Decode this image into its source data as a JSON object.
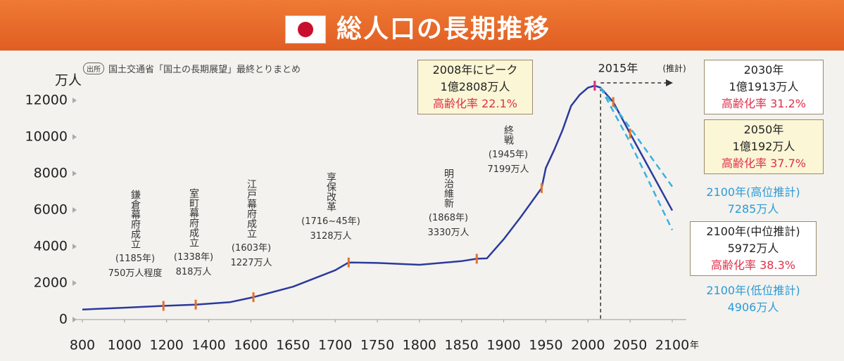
{
  "chart_data": {
    "type": "line",
    "title": "総人口の長期推移",
    "source_tag": "出所",
    "source": "国土交通省「国土の長期展望」最終とりまとめ",
    "y_unit": "万人",
    "x_unit": "年",
    "ylim": [
      0,
      13000
    ],
    "yticks": [
      0,
      2000,
      4000,
      6000,
      8000,
      10000,
      12000
    ],
    "xticks": [
      800,
      1000,
      1200,
      1400,
      1600,
      1650,
      1700,
      1750,
      1800,
      1850,
      1900,
      1950,
      2000,
      2050,
      2100
    ],
    "projection_line": {
      "value": 2015,
      "label": "2015年",
      "note": "(推計)"
    },
    "series": [
      {
        "color": "#2b3a9c",
        "style": "solid",
        "x": [
          800,
          1000,
          1185,
          1338,
          1500,
          1603,
          1650,
          1700,
          1716,
          1750,
          1800,
          1850,
          1868,
          1880,
          1900,
          1920,
          1945,
          1950,
          1960,
          1970,
          1980,
          1990,
          2000,
          2008,
          2015,
          2030,
          2050,
          2100
        ],
        "values": [
          550,
          650,
          750,
          818,
          950,
          1227,
          1800,
          2700,
          3128,
          3100,
          3000,
          3200,
          3330,
          3350,
          4400,
          5600,
          7199,
          8300,
          9300,
          10400,
          11700,
          12300,
          12700,
          12808,
          12700,
          11913,
          10192,
          5972
        ]
      },
      {
        "color": "#3ab0e0",
        "style": "dashed",
        "x": [
          2015,
          2050,
          2100
        ],
        "values": [
          12700,
          10500,
          7285
        ]
      },
      {
        "color": "#3ab0e0",
        "style": "dashed",
        "x": [
          2015,
          2050,
          2100
        ],
        "values": [
          12700,
          9700,
          4906
        ]
      },
      {
        "color": "#e8702a",
        "style": "marker",
        "x": [
          1185,
          1338,
          1603,
          1716,
          1868,
          1945,
          2030,
          2050
        ],
        "values": [
          750,
          818,
          1227,
          3128,
          3330,
          7199,
          11913,
          10192
        ]
      },
      {
        "color": "#e0307a",
        "style": "marker",
        "x": [
          2008
        ],
        "values": [
          12808
        ]
      }
    ],
    "events": [
      {
        "title": "鎌倉幕府成立",
        "date": "(1185年)",
        "value": "750万人程度"
      },
      {
        "title": "室町幕府成立",
        "date": "(1338年)",
        "value": "818万人"
      },
      {
        "title": "江戸幕府成立",
        "date": "(1603年)",
        "value": "1227万人"
      },
      {
        "title": "享保改革",
        "date": "(1716~45年)",
        "value": "3128万人"
      },
      {
        "title": "明治維新",
        "date": "(1868年)",
        "value": "3330万人"
      },
      {
        "title": "終戦",
        "date": "(1945年)",
        "value": "7199万人"
      }
    ],
    "callouts": [
      {
        "head": "2008年にピーク",
        "value": "1億2808万人",
        "aging": "高齢化率 22.1%"
      },
      {
        "head": "2030年",
        "value": "1億1913万人",
        "aging": "高齢化率 31.2%"
      },
      {
        "head": "2050年",
        "value": "1億192万人",
        "aging": "高齢化率 37.7%"
      },
      {
        "head": "2100年(高位推計)",
        "value": "7285万人"
      },
      {
        "head": "2100年(中位推計)",
        "value": "5972万人",
        "aging": "高齢化率 38.3%"
      },
      {
        "head": "2100年(低位推計)",
        "value": "4906万人"
      }
    ]
  }
}
